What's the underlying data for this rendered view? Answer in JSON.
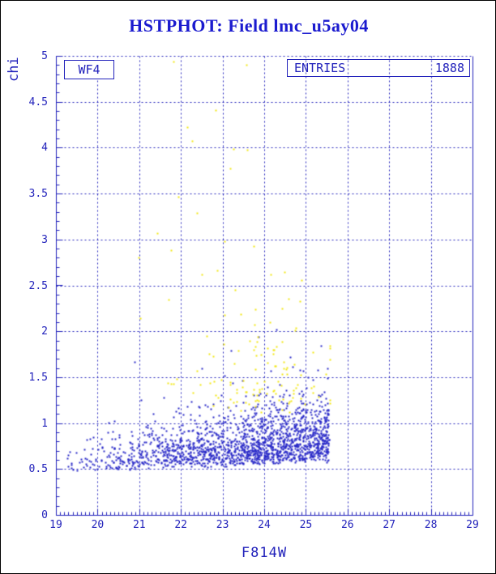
{
  "page": {
    "background": "#ffffff",
    "border_color": "#000000"
  },
  "header": {
    "title": "HSTPHOT: Field lmc_u5ay04"
  },
  "plot": {
    "panel_label": "WF4",
    "stats_box": {
      "label": "ENTRIES",
      "value": "1888"
    },
    "x_axis": {
      "title": "F814W",
      "tick_labels": [
        "19",
        "20",
        "21",
        "22",
        "23",
        "24",
        "25",
        "26",
        "27",
        "28",
        "29"
      ],
      "tick_values": [
        19,
        20,
        21,
        22,
        23,
        24,
        25,
        26,
        27,
        28,
        29
      ]
    },
    "y_axis": {
      "title": "chi",
      "tick_labels": [
        "0",
        "0.5",
        "1",
        "1.5",
        "2",
        "2.5",
        "3",
        "3.5",
        "4",
        "4.5",
        "5"
      ],
      "tick_values": [
        0,
        0.5,
        1,
        1.5,
        2,
        2.5,
        3,
        3.5,
        4,
        4.5,
        5
      ]
    }
  },
  "colors": {
    "axis_blue": "#2222bb",
    "title_blue": "#1b1bcf",
    "point_blue": "#2828c8",
    "point_yellow": "#f2e713",
    "grid_blue": "#2222bb"
  },
  "chart_data": {
    "type": "scatter",
    "title": "HSTPHOT: Field lmc_u5ay04",
    "xlabel": "F814W",
    "ylabel": "chi",
    "xlim": [
      19,
      29
    ],
    "ylim": [
      0,
      5
    ],
    "grid": {
      "style": "dashed",
      "x_step": 1,
      "y_step": 0.5,
      "on": true
    },
    "ticks": {
      "x_minor_step": 0.1,
      "x_major_step": 1,
      "y_minor_step": 0.1,
      "y_major_step": 0.5
    },
    "legend": "none",
    "entries_count": 1888,
    "description": "Photometry quality chi vs F814W magnitude for chip WF4; dense blue band of good stars at chi 0.45-1.2 with sharp faint-end cutoff near F814W=25.5; yellow flagged stars mostly chi>1.1 between F814W 21.5-25.6 with isolated high-chi outliers.",
    "series": [
      {
        "name": "good-stars-blue",
        "marker": "2px square",
        "generator": {
          "seed": 7,
          "n": 1750,
          "x_min": 19.12,
          "x_span": 6.43,
          "x_power": 0.5,
          "chi_floor_base": 0.44,
          "chi_floor_slope": 0.02,
          "chi_spread_base": 0.09,
          "chi_spread_slope": 0.028,
          "tail_frac": 0.045,
          "tail_extra": 0.55,
          "chi_max": 2.05
        },
        "outliers": [
          [
            20.89,
            1.67
          ],
          [
            22.5,
            1.6
          ],
          [
            23.05,
            1.52
          ],
          [
            23.2,
            1.79
          ],
          [
            23.86,
            1.94
          ],
          [
            24.3,
            2.02
          ],
          [
            24.62,
            1.72
          ],
          [
            24.85,
            1.58
          ],
          [
            25.05,
            1.5
          ]
        ]
      },
      {
        "name": "flagged-stars-yellow",
        "marker": "2px square",
        "generator": {
          "seed": 99,
          "n": 115,
          "x_mean": 23.85,
          "x_sigma": 0.92,
          "x_clamp": [
            21.55,
            25.58
          ],
          "chi_base": 1.08,
          "chi_spread": 0.42,
          "tail_frac": 0.12,
          "tail_extra": 0.85,
          "chi_clamp": [
            1.0,
            3.1
          ]
        },
        "outliers": [
          [
            21.82,
            4.94
          ],
          [
            23.58,
            4.9
          ],
          [
            22.83,
            4.41
          ],
          [
            22.15,
            4.22
          ],
          [
            22.27,
            4.07
          ],
          [
            23.26,
            3.99
          ],
          [
            23.6,
            3.98
          ],
          [
            23.18,
            3.77
          ],
          [
            21.94,
            3.47
          ],
          [
            22.38,
            3.29
          ],
          [
            21.43,
            3.07
          ],
          [
            23.05,
            2.98
          ],
          [
            23.75,
            2.93
          ],
          [
            21.76,
            2.88
          ],
          [
            20.98,
            2.8
          ],
          [
            22.5,
            2.62
          ],
          [
            24.15,
            2.62
          ],
          [
            24.9,
            2.56
          ],
          [
            23.3,
            2.45
          ],
          [
            21.7,
            2.35
          ],
          [
            21.02,
            2.14
          ]
        ]
      }
    ]
  }
}
